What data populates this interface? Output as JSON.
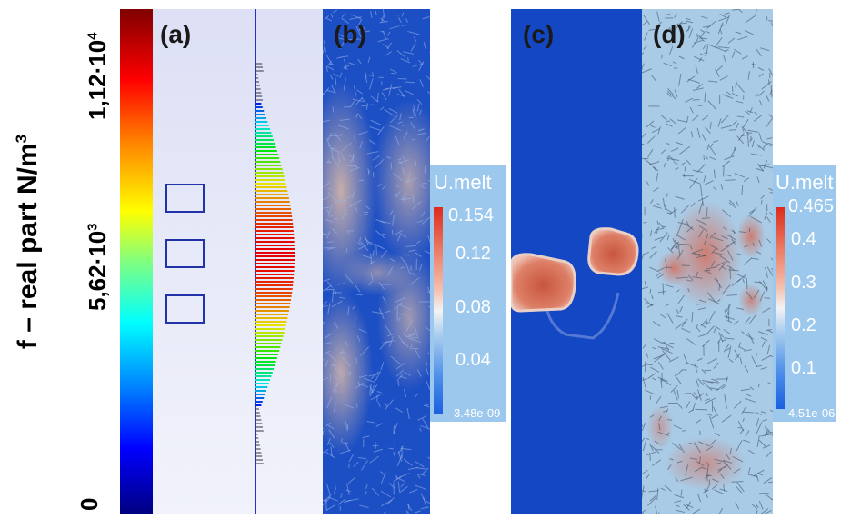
{
  "figure": {
    "ylabel_text": "f – real part N/m",
    "ylabel_exp": "3",
    "ticks": [
      {
        "mantissa": "1,12·10",
        "exp": "4"
      },
      {
        "mantissa": "5,62·10",
        "exp": "3"
      },
      {
        "mantissa": "0",
        "exp": ""
      }
    ],
    "panels": {
      "a": "(a)",
      "b": "(b)",
      "c": "(c)",
      "d": "(d)"
    },
    "legend_b": {
      "title": "U.melt",
      "max": "0.154",
      "ticks": [
        "0.12",
        "0.08",
        "0.04"
      ],
      "min": "3.48e-09"
    },
    "legend_d": {
      "title": "U.melt",
      "max": "0.465",
      "ticks": [
        "0.4",
        "0.3",
        "0.2",
        "0.1"
      ],
      "min": "4.51e-06"
    }
  }
}
